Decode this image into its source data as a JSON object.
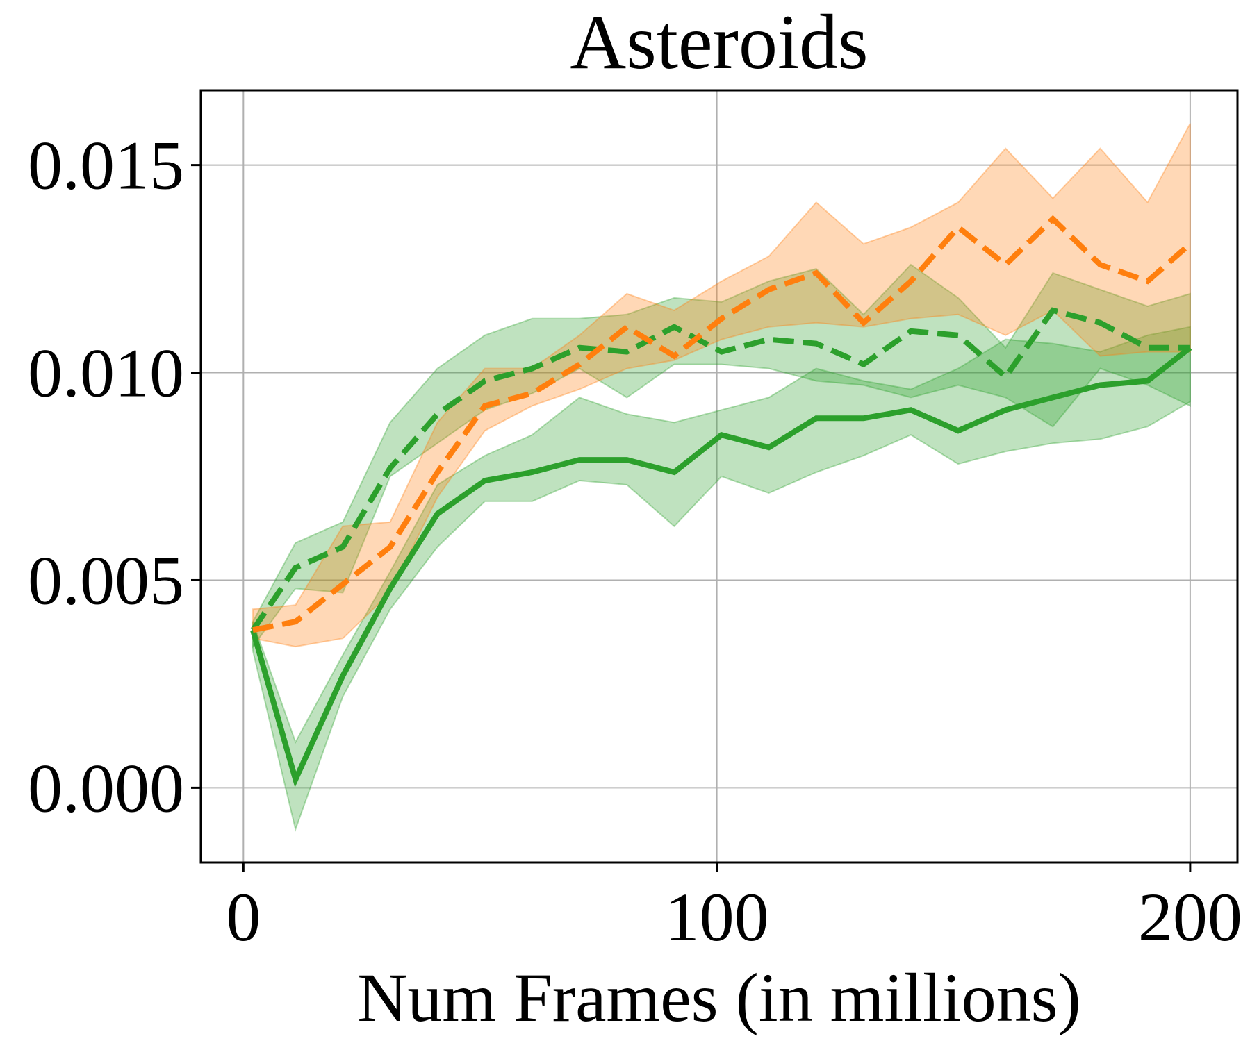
{
  "chart_data": {
    "type": "line",
    "title": "Asteroids",
    "xlabel": "Num Frames (in millions)",
    "ylabel": "",
    "xlim": [
      -9,
      210
    ],
    "ylim": [
      -0.0018,
      0.0168
    ],
    "xticks": [
      0,
      100,
      200
    ],
    "xtick_labels": [
      "0",
      "100",
      "200"
    ],
    "yticks": [
      0.0,
      0.005,
      0.01,
      0.015
    ],
    "ytick_labels": [
      "0.000",
      "0.005",
      "0.010",
      "0.015"
    ],
    "grid": true,
    "legend": "none",
    "x": [
      2,
      11,
      21,
      31,
      41,
      51,
      61,
      71,
      81,
      91,
      101,
      111,
      121,
      131,
      141,
      151,
      161,
      171,
      181,
      191,
      200
    ],
    "series": [
      {
        "color": "#2ca02c",
        "style": "solid",
        "values": [
          0.0038,
          0.0002,
          0.0027,
          0.0048,
          0.0066,
          0.0074,
          0.0076,
          0.0079,
          0.0079,
          0.0076,
          0.0085,
          0.0082,
          0.0089,
          0.0089,
          0.0091,
          0.0086,
          0.0091,
          0.0094,
          0.0097,
          0.0098,
          0.0106
        ],
        "lower": [
          0.0033,
          -0.001,
          0.0022,
          0.0043,
          0.0058,
          0.0069,
          0.0069,
          0.0074,
          0.0073,
          0.0063,
          0.0075,
          0.0071,
          0.0076,
          0.008,
          0.0085,
          0.0078,
          0.0081,
          0.0083,
          0.0084,
          0.0087,
          0.0093
        ],
        "upper": [
          0.004,
          0.0011,
          0.0032,
          0.0052,
          0.0073,
          0.008,
          0.0085,
          0.0094,
          0.009,
          0.0088,
          0.0091,
          0.0094,
          0.0101,
          0.0098,
          0.0096,
          0.0101,
          0.0108,
          0.0107,
          0.0105,
          0.0109,
          0.0111
        ]
      },
      {
        "color": "#2ca02c",
        "style": "dashed",
        "values": [
          0.0038,
          0.0053,
          0.0058,
          0.0077,
          0.009,
          0.0098,
          0.0101,
          0.0106,
          0.0105,
          0.0111,
          0.0105,
          0.0108,
          0.0107,
          0.0102,
          0.011,
          0.0109,
          0.0099,
          0.0115,
          0.0112,
          0.0106,
          0.0106
        ],
        "lower": [
          0.0034,
          0.0048,
          0.0047,
          0.0075,
          0.0083,
          0.0091,
          0.0095,
          0.0101,
          0.0094,
          0.0102,
          0.0102,
          0.0101,
          0.0098,
          0.0097,
          0.0094,
          0.0097,
          0.0094,
          0.0087,
          0.0101,
          0.0097,
          0.0092
        ],
        "upper": [
          0.004,
          0.0059,
          0.0064,
          0.0088,
          0.0101,
          0.0109,
          0.0113,
          0.0113,
          0.0114,
          0.0118,
          0.0117,
          0.0122,
          0.0125,
          0.0114,
          0.0126,
          0.0118,
          0.0106,
          0.0124,
          0.012,
          0.0116,
          0.0119
        ]
      },
      {
        "color": "#ff7f0e",
        "style": "dashed",
        "values": [
          0.0038,
          0.004,
          0.0049,
          0.0058,
          0.0076,
          0.0092,
          0.0095,
          0.0102,
          0.0111,
          0.0104,
          0.0113,
          0.012,
          0.0124,
          0.0112,
          0.0122,
          0.0135,
          0.0126,
          0.0137,
          0.0126,
          0.0122,
          0.0131
        ],
        "lower": [
          0.0036,
          0.0034,
          0.0036,
          0.0047,
          0.007,
          0.0086,
          0.0092,
          0.0096,
          0.0101,
          0.0103,
          0.0108,
          0.0111,
          0.0112,
          0.0111,
          0.0113,
          0.0114,
          0.0109,
          0.0115,
          0.0104,
          0.0105,
          0.0105
        ],
        "upper": [
          0.0043,
          0.0044,
          0.0063,
          0.0064,
          0.0088,
          0.0101,
          0.0101,
          0.0109,
          0.0119,
          0.0115,
          0.0122,
          0.0128,
          0.0141,
          0.0131,
          0.0135,
          0.0141,
          0.0154,
          0.0142,
          0.0154,
          0.0141,
          0.016
        ]
      }
    ]
  }
}
